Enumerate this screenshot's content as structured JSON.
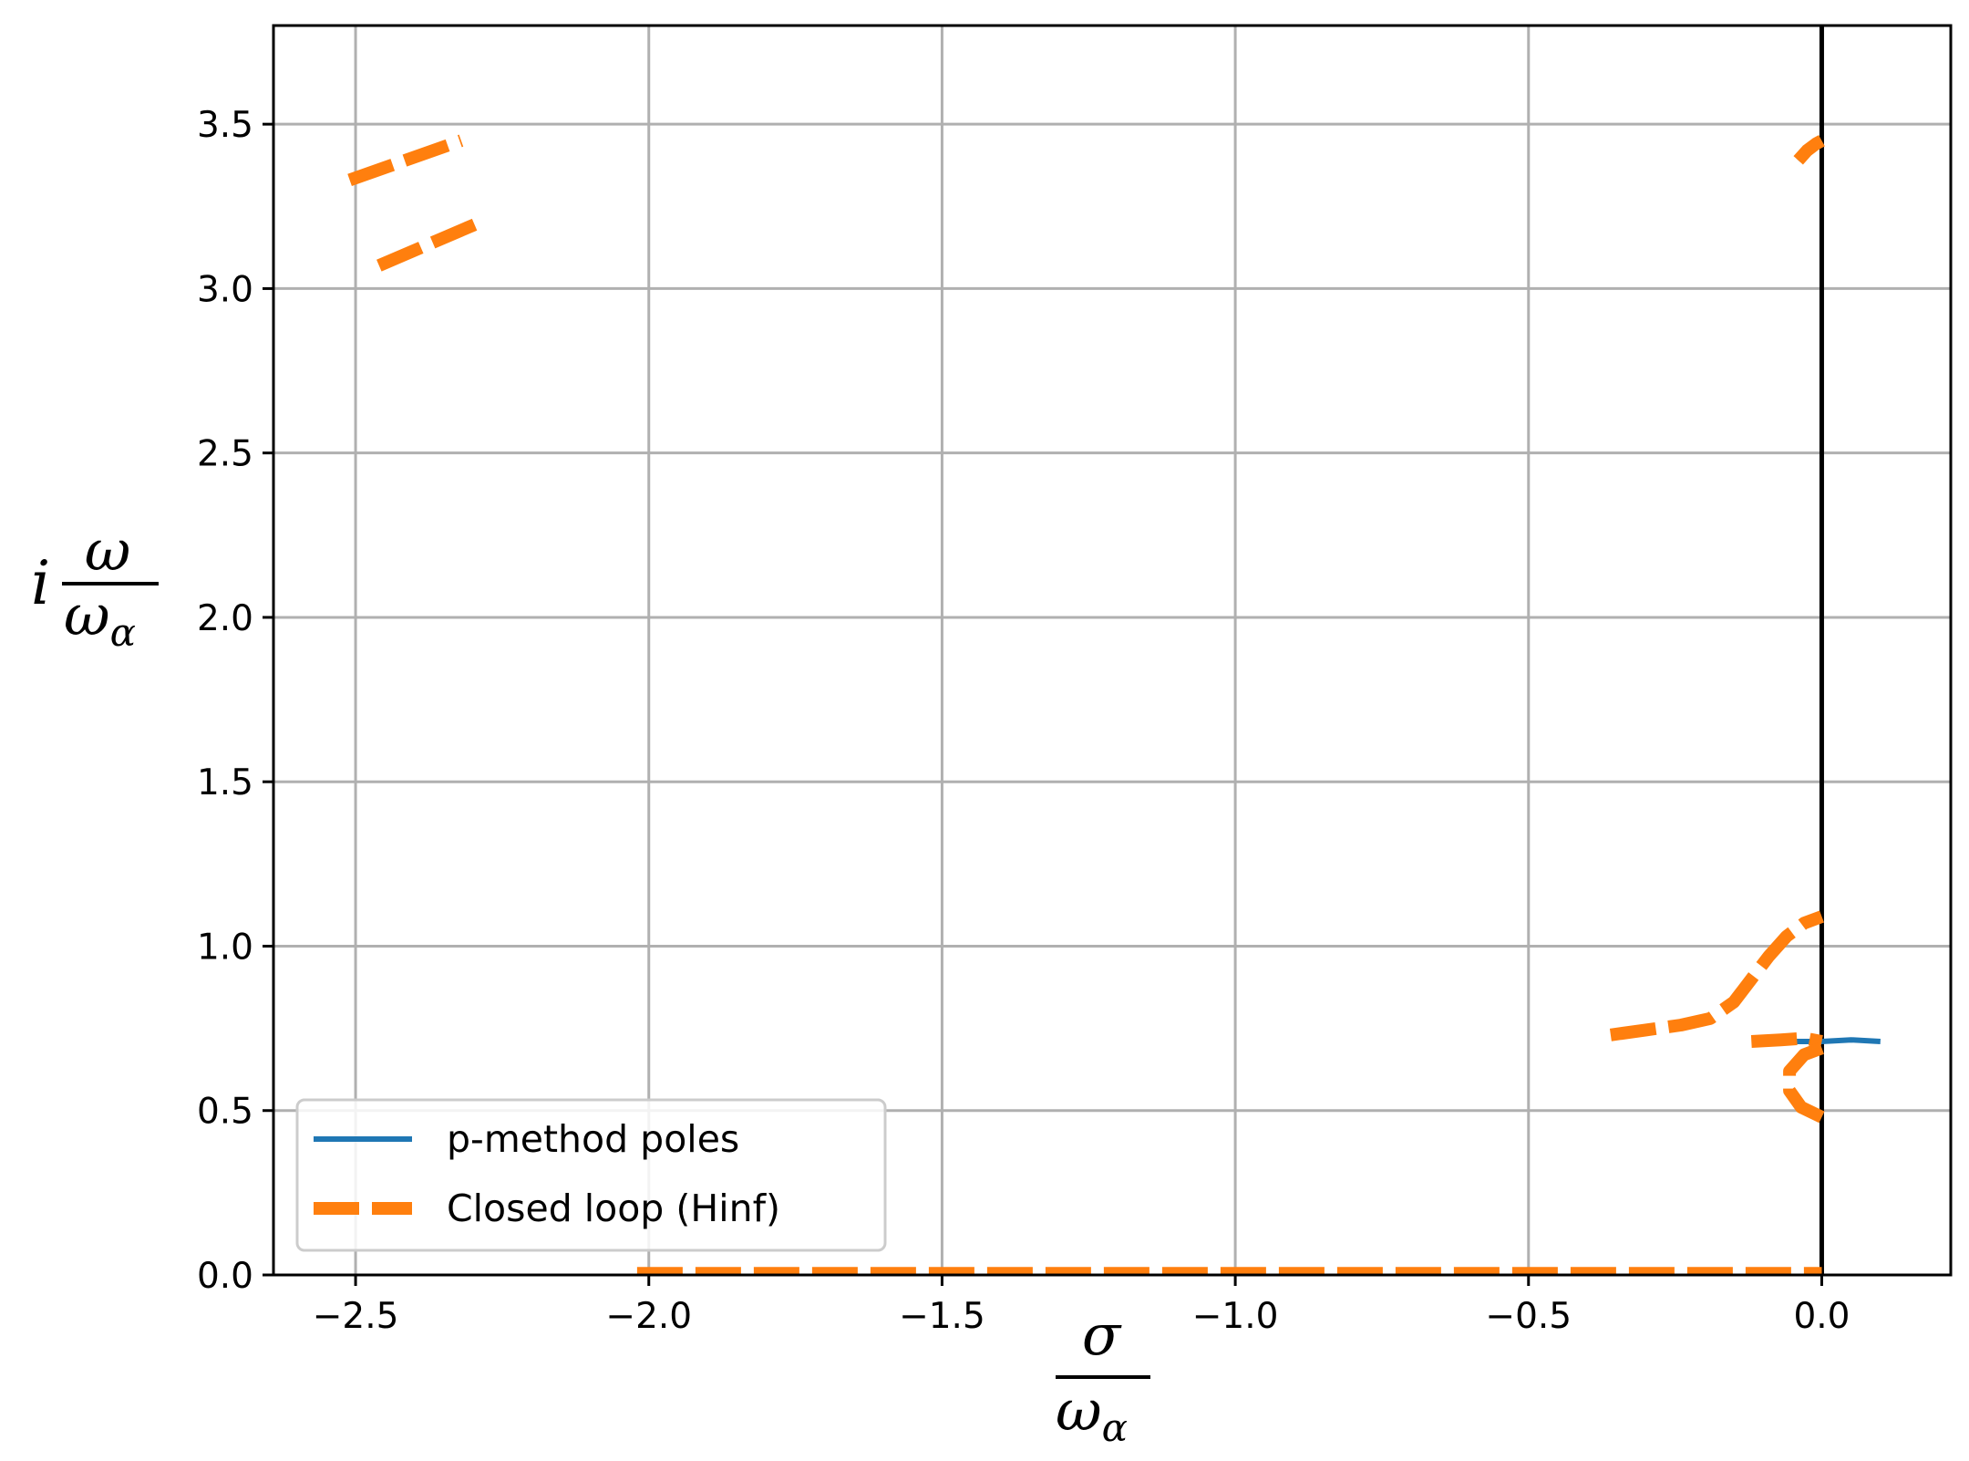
{
  "chart_data": {
    "type": "line",
    "title": "",
    "xlabel": {
      "numerator": "σ",
      "denominator": "ω",
      "subscript": "α"
    },
    "ylabel": {
      "prefix": "i",
      "numerator": "ω",
      "denominator": "ω",
      "subscript": "α"
    },
    "xlim": [
      -2.64,
      0.22
    ],
    "ylim": [
      0.0,
      3.8
    ],
    "xticks": [
      -2.5,
      -2.0,
      -1.5,
      -1.0,
      -0.5,
      0.0
    ],
    "xtick_labels": [
      "−2.5",
      "−2.0",
      "−1.5",
      "−1.0",
      "−0.5",
      "0.0"
    ],
    "yticks": [
      0.0,
      0.5,
      1.0,
      1.5,
      2.0,
      2.5,
      3.0,
      3.5
    ],
    "ytick_labels": [
      "0.0",
      "0.5",
      "1.0",
      "1.5",
      "2.0",
      "2.5",
      "3.0",
      "3.5"
    ],
    "grid": true,
    "legend_position": "lower-left",
    "colors": {
      "p_method": "#1f77b4",
      "closed_loop": "#ff7f0e",
      "vline": "#000000",
      "grid": "#b0b0b0"
    },
    "vertical_line_x": 0.0,
    "series": [
      {
        "name": "p-method poles",
        "style": "solid",
        "segments": [
          [
            [
              -0.04,
              3.39
            ],
            [
              -0.03,
              3.41
            ]
          ],
          [
            [
              -0.06,
              0.71
            ],
            [
              0.0,
              0.71
            ],
            [
              0.05,
              0.715
            ],
            [
              0.1,
              0.71
            ]
          ]
        ]
      },
      {
        "name": "Closed loop (Hinf)",
        "style": "dashed",
        "segments": [
          [
            [
              -2.51,
              3.33
            ],
            [
              -2.32,
              3.45
            ]
          ],
          [
            [
              -2.46,
              3.07
            ],
            [
              -2.29,
              3.2
            ]
          ],
          [
            [
              -0.04,
              3.39
            ],
            [
              -0.025,
              3.42
            ],
            [
              -0.01,
              3.44
            ],
            [
              0.0,
              3.45
            ]
          ],
          [
            [
              -0.36,
              0.73
            ],
            [
              -0.3,
              0.745
            ],
            [
              -0.24,
              0.76
            ],
            [
              -0.19,
              0.78
            ],
            [
              -0.15,
              0.83
            ],
            [
              -0.12,
              0.9
            ],
            [
              -0.09,
              0.97
            ],
            [
              -0.06,
              1.03
            ],
            [
              -0.03,
              1.07
            ],
            [
              0.0,
              1.09
            ]
          ],
          [
            [
              -0.12,
              0.71
            ],
            [
              -0.07,
              0.715
            ],
            [
              -0.03,
              0.72
            ],
            [
              0.0,
              0.71
            ]
          ],
          [
            [
              0.0,
              0.69
            ],
            [
              -0.03,
              0.67
            ],
            [
              -0.055,
              0.62
            ],
            [
              -0.055,
              0.56
            ],
            [
              -0.035,
              0.51
            ],
            [
              0.0,
              0.48
            ]
          ],
          [
            [
              -2.02,
              0.005
            ],
            [
              0.0,
              0.005
            ]
          ]
        ]
      }
    ]
  }
}
